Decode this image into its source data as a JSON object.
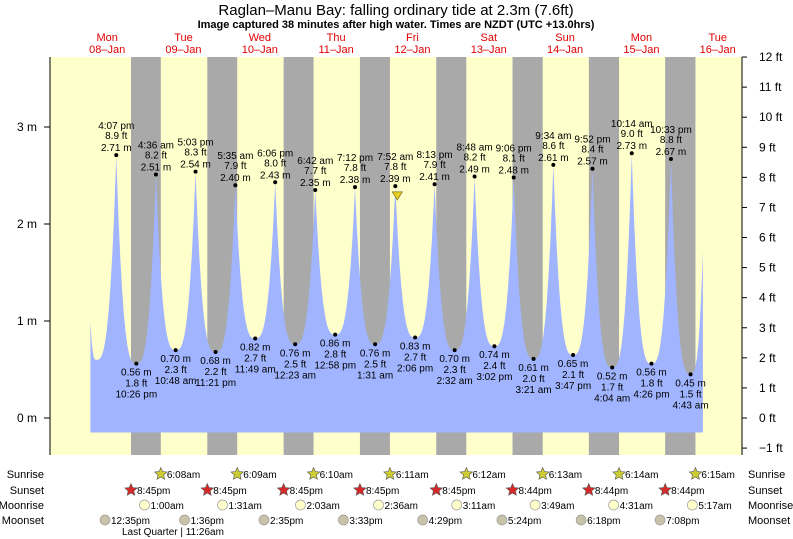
{
  "header": {
    "title": "Raglan–Manu Bay: falling  ordinary tide at 2.3m (7.6ft)",
    "subtitle": "Image captured 38 minutes after high water. Times are NZDT (UTC +13.0hrs)"
  },
  "days": [
    {
      "name": "Mon",
      "date": "08–Jan"
    },
    {
      "name": "Tue",
      "date": "09–Jan"
    },
    {
      "name": "Wed",
      "date": "10–Jan"
    },
    {
      "name": "Thu",
      "date": "11–Jan"
    },
    {
      "name": "Fri",
      "date": "12–Jan"
    },
    {
      "name": "Sat",
      "date": "13–Jan"
    },
    {
      "name": "Sun",
      "date": "14–Jan"
    },
    {
      "name": "Mon",
      "date": "15–Jan"
    },
    {
      "name": "Tue",
      "date": "16–Jan"
    }
  ],
  "rows": {
    "sunrise": "Sunrise",
    "sunset": "Sunset",
    "moonrise": "Moonrise",
    "moonset": "Moonset"
  },
  "moon_phase": "Last Quarter | 11:26am",
  "colors": {
    "day": "#ffffcc",
    "night": "#a9a9a9",
    "water": "#a0b4ff",
    "sun_rise": "#cccc33",
    "sun_set": "#d62a2a",
    "moonrise": "#ffffcc",
    "moonset": "#c8c3a8",
    "day_label": "#e00000"
  },
  "chart_data": {
    "type": "area",
    "title": "Raglan–Manu Bay: falling  ordinary tide at 2.3m (7.6ft)",
    "x_unit": "hours since Mon 08-Jan 00:00 NZDT",
    "xlim": [
      -4.7,
      213
    ],
    "ylim_m": [
      -0.35,
      3.75
    ],
    "ylabel_left_ticks": [
      "0 m",
      "1 m",
      "2 m",
      "3 m"
    ],
    "yticks_m": [
      0,
      1,
      2,
      3
    ],
    "ylabel_right_ticks": [
      "−1 ft",
      "0 ft",
      "1 ft",
      "2 ft",
      "3 ft",
      "4 ft",
      "5 ft",
      "6 ft",
      "7 ft",
      "8 ft",
      "9 ft",
      "10 ft",
      "11 ft",
      "12 ft"
    ],
    "yticks_ft": [
      -1,
      0,
      1,
      2,
      3,
      4,
      5,
      6,
      7,
      8,
      9,
      10,
      11,
      12
    ],
    "curve_start": {
      "t": 8,
      "m": 1.0
    },
    "curve_end": {
      "t": 200.6,
      "m": 1.73
    },
    "fill_floor_m": -0.15,
    "current": {
      "t": 104.5,
      "m": 2.3
    },
    "extremes": [
      {
        "type": "L",
        "t": 9.8,
        "m": 0.6,
        "hidden": true,
        "time": "",
        "ft": "",
        "ml": ""
      },
      {
        "type": "H",
        "t": 16.12,
        "m": 2.71,
        "time": "4:07 pm",
        "ft": "8.9 ft",
        "ml": "2.71 m"
      },
      {
        "type": "L",
        "t": 22.43,
        "m": 0.56,
        "time": "10:26 pm",
        "ft": "1.8 ft",
        "ml": "0.56 m"
      },
      {
        "type": "H",
        "t": 28.6,
        "m": 2.51,
        "time": "4:36 am",
        "ft": "8.2 ft",
        "ml": "2.51 m"
      },
      {
        "type": "L",
        "t": 34.8,
        "m": 0.7,
        "time": "10:48 am",
        "ft": "2.3 ft",
        "ml": "0.70 m"
      },
      {
        "type": "H",
        "t": 41.05,
        "m": 2.54,
        "time": "5:03 pm",
        "ft": "8.3 ft",
        "ml": "2.54 m"
      },
      {
        "type": "L",
        "t": 47.35,
        "m": 0.68,
        "time": "11:21 pm",
        "ft": "2.2 ft",
        "ml": "0.68 m"
      },
      {
        "type": "H",
        "t": 53.58,
        "m": 2.4,
        "time": "5:35 am",
        "ft": "7.9 ft",
        "ml": "2.40 m"
      },
      {
        "type": "L",
        "t": 59.82,
        "m": 0.82,
        "time": "11:49 am",
        "ft": "2.7 ft",
        "ml": "0.82 m"
      },
      {
        "type": "H",
        "t": 66.1,
        "m": 2.43,
        "time": "6:06 pm",
        "ft": "8.0 ft",
        "ml": "2.43 m"
      },
      {
        "type": "L",
        "t": 72.38,
        "m": 0.76,
        "time": "12:23 am",
        "ft": "2.5 ft",
        "ml": "0.76 m"
      },
      {
        "type": "H",
        "t": 78.7,
        "m": 2.35,
        "time": "6:42 am",
        "ft": "7.7 ft",
        "ml": "2.35 m"
      },
      {
        "type": "L",
        "t": 84.97,
        "m": 0.86,
        "time": "12:58 pm",
        "ft": "2.8 ft",
        "ml": "0.86 m"
      },
      {
        "type": "H",
        "t": 91.2,
        "m": 2.38,
        "time": "7:12 pm",
        "ft": "7.8 ft",
        "ml": "2.38 m"
      },
      {
        "type": "L",
        "t": 97.52,
        "m": 0.76,
        "time": "1:31 am",
        "ft": "2.5 ft",
        "ml": "0.76 m"
      },
      {
        "type": "H",
        "t": 103.87,
        "m": 2.39,
        "time": "7:52 am",
        "ft": "7.8 ft",
        "ml": "2.39 m"
      },
      {
        "type": "L",
        "t": 110.1,
        "m": 0.83,
        "time": "2:06 pm",
        "ft": "2.7 ft",
        "ml": "0.83 m"
      },
      {
        "type": "H",
        "t": 116.22,
        "m": 2.41,
        "time": "8:13 pm",
        "ft": "7.9 ft",
        "ml": "2.41 m"
      },
      {
        "type": "L",
        "t": 122.53,
        "m": 0.7,
        "time": "2:32 am",
        "ft": "2.3 ft",
        "ml": "0.70 m"
      },
      {
        "type": "H",
        "t": 128.8,
        "m": 2.49,
        "time": "8:48 am",
        "ft": "8.2 ft",
        "ml": "2.49 m"
      },
      {
        "type": "L",
        "t": 135.03,
        "m": 0.74,
        "time": "3:02 pm",
        "ft": "2.4 ft",
        "ml": "0.74 m"
      },
      {
        "type": "H",
        "t": 141.1,
        "m": 2.48,
        "time": "9:06 pm",
        "ft": "8.1 ft",
        "ml": "2.48 m"
      },
      {
        "type": "L",
        "t": 147.35,
        "m": 0.61,
        "time": "3:21 am",
        "ft": "2.0 ft",
        "ml": "0.61 m"
      },
      {
        "type": "H",
        "t": 153.57,
        "m": 2.61,
        "time": "9:34 am",
        "ft": "8.6 ft",
        "ml": "2.61 m"
      },
      {
        "type": "L",
        "t": 159.78,
        "m": 0.65,
        "time": "3:47 pm",
        "ft": "2.1 ft",
        "ml": "0.65 m"
      },
      {
        "type": "H",
        "t": 165.87,
        "m": 2.57,
        "time": "9:52 pm",
        "ft": "8.4 ft",
        "ml": "2.57 m"
      },
      {
        "type": "L",
        "t": 172.07,
        "m": 0.52,
        "time": "4:04 am",
        "ft": "1.7 ft",
        "ml": "0.52 m"
      },
      {
        "type": "H",
        "t": 178.23,
        "m": 2.73,
        "time": "10:14 am",
        "ft": "9.0 ft",
        "ml": "2.73 m"
      },
      {
        "type": "L",
        "t": 184.43,
        "m": 0.56,
        "time": "4:26 pm",
        "ft": "1.8 ft",
        "ml": "0.56 m"
      },
      {
        "type": "H",
        "t": 190.55,
        "m": 2.67,
        "time": "10:33 pm",
        "ft": "8.8 ft",
        "ml": "2.67 m"
      },
      {
        "type": "L",
        "t": 196.72,
        "m": 0.45,
        "time": "4:43 am",
        "ft": "1.5 ft",
        "ml": "0.45 m"
      }
    ],
    "sunrise": [
      {
        "t": 30.13,
        "label": "6:08am"
      },
      {
        "t": 54.15,
        "label": "6:09am"
      },
      {
        "t": 78.17,
        "label": "6:10am"
      },
      {
        "t": 102.18,
        "label": "6:11am"
      },
      {
        "t": 126.2,
        "label": "6:12am"
      },
      {
        "t": 150.22,
        "label": "6:13am"
      },
      {
        "t": 174.23,
        "label": "6:14am"
      },
      {
        "t": 198.25,
        "label": "6:15am"
      }
    ],
    "sunset": [
      {
        "t": 20.75,
        "label": "8:45pm"
      },
      {
        "t": 44.75,
        "label": "8:45pm"
      },
      {
        "t": 68.75,
        "label": "8:45pm"
      },
      {
        "t": 92.75,
        "label": "8:45pm"
      },
      {
        "t": 116.75,
        "label": "8:45pm"
      },
      {
        "t": 140.73,
        "label": "8:44pm"
      },
      {
        "t": 164.73,
        "label": "8:44pm"
      },
      {
        "t": 188.73,
        "label": "8:44pm"
      }
    ],
    "moonrise": [
      {
        "t": 25,
        "label": "1:00am"
      },
      {
        "t": 49.52,
        "label": "1:31am"
      },
      {
        "t": 74.05,
        "label": "2:03am"
      },
      {
        "t": 98.6,
        "label": "2:36am"
      },
      {
        "t": 123.18,
        "label": "3:11am"
      },
      {
        "t": 147.82,
        "label": "3:49am"
      },
      {
        "t": 172.52,
        "label": "4:31am"
      },
      {
        "t": 197.28,
        "label": "5:17am"
      }
    ],
    "moonset": [
      {
        "t": 12.58,
        "label": "12:35pm"
      },
      {
        "t": 37.6,
        "label": "1:36pm"
      },
      {
        "t": 62.58,
        "label": "2:35pm"
      },
      {
        "t": 87.55,
        "label": "3:33pm"
      },
      {
        "t": 112.48,
        "label": "4:29pm"
      },
      {
        "t": 137.4,
        "label": "5:24pm"
      },
      {
        "t": 162.3,
        "label": "6:18pm"
      },
      {
        "t": 187.13,
        "label": "7:08pm"
      }
    ]
  }
}
